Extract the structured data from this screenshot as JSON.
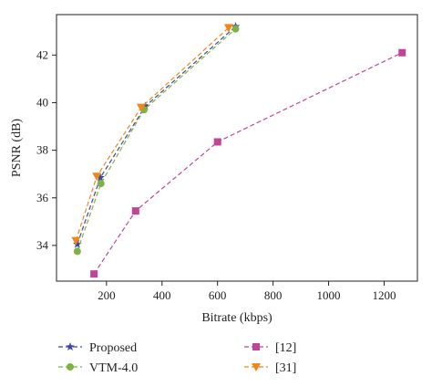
{
  "chart_data": {
    "type": "line",
    "xlabel": "Bitrate (kbps)",
    "ylabel": "PSNR (dB)",
    "xlim": [
      20,
      1320
    ],
    "ylim": [
      32.5,
      43.7
    ],
    "x_ticks": [
      200,
      400,
      600,
      800,
      1000,
      1200
    ],
    "y_ticks": [
      34,
      36,
      38,
      40,
      42
    ],
    "grid": false,
    "legend_position": "bottom, two columns",
    "series": [
      {
        "name": "Proposed",
        "color": "#3b4a9e",
        "marker": "star",
        "x": [
          95,
          178,
          340,
          665
        ],
        "y": [
          34.05,
          36.85,
          39.85,
          43.2
        ]
      },
      {
        "name": "VTM-4.0",
        "color": "#7cb342",
        "marker": "circle",
        "x": [
          95,
          180,
          335,
          665
        ],
        "y": [
          33.75,
          36.6,
          39.7,
          43.1
        ]
      },
      {
        "name": "[12]",
        "color": "#c0449a",
        "marker": "square",
        "x": [
          155,
          305,
          600,
          1265
        ],
        "y": [
          32.8,
          35.45,
          38.35,
          42.1
        ]
      },
      {
        "name": "[31]",
        "color": "#f0861a",
        "marker": "triangle-down",
        "x": [
          90,
          165,
          325,
          640
        ],
        "y": [
          34.2,
          36.9,
          39.8,
          43.15
        ]
      }
    ]
  }
}
